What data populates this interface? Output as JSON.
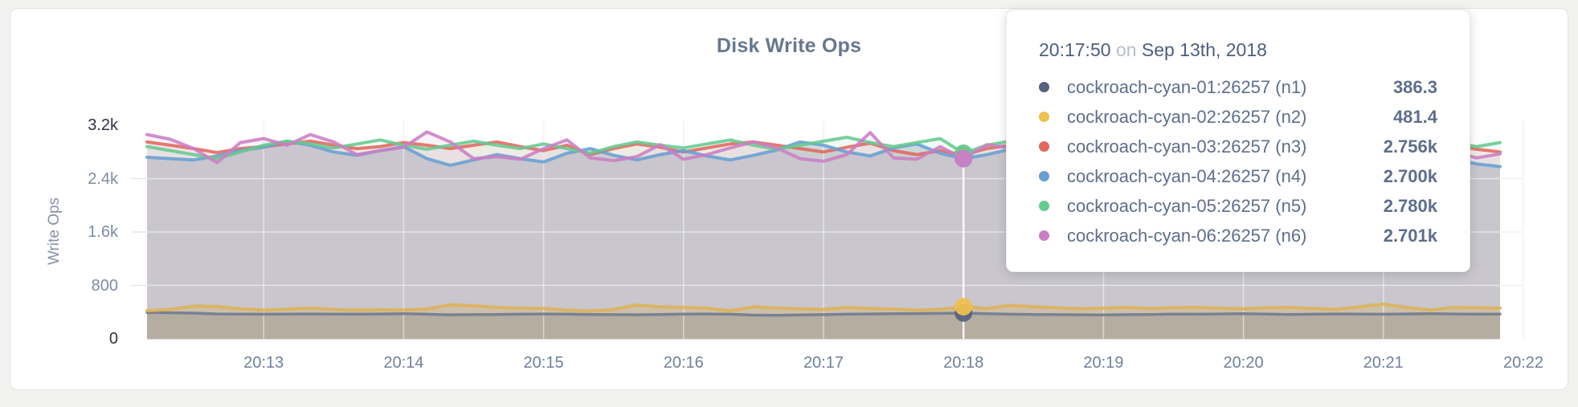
{
  "chart_data": {
    "type": "area",
    "title": "Disk Write Ops",
    "ylabel": "Write Ops",
    "ylim": [
      0,
      3200
    ],
    "grid": true,
    "y_ticks": [
      {
        "value": 0,
        "label": "0",
        "extreme": true
      },
      {
        "value": 800,
        "label": "800",
        "extreme": false
      },
      {
        "value": 1600,
        "label": "1.6k",
        "extreme": false
      },
      {
        "value": 2400,
        "label": "2.4k",
        "extreme": false
      },
      {
        "value": 3200,
        "label": "3.2k",
        "extreme": true
      }
    ],
    "x_tick_labels": [
      "20:13",
      "20:14",
      "20:15",
      "20:16",
      "20:17",
      "20:18",
      "20:19",
      "20:20",
      "20:21",
      "20:22"
    ],
    "x_start_time": "20:12:10",
    "x_step_seconds": 10,
    "series": [
      {
        "name": "cockroach-cyan-01:26257 (n1)",
        "color": "#6f7a8e",
        "dot_color": "#57637d",
        "width": 3.5,
        "values": [
          395,
          390,
          385,
          372,
          370,
          368,
          370,
          372,
          370,
          368,
          372,
          375,
          368,
          360,
          362,
          365,
          368,
          372,
          370,
          365,
          362,
          360,
          365,
          370,
          372,
          368,
          355,
          352,
          358,
          362,
          368,
          372,
          375,
          378,
          380,
          386.3,
          375,
          368,
          365,
          362,
          360,
          358,
          362,
          365,
          370,
          368,
          372,
          375,
          370,
          365,
          368,
          372,
          370,
          368,
          372,
          375,
          372,
          368,
          370
        ],
        "fill": "rgba(99,110,134,0.22)"
      },
      {
        "name": "cockroach-cyan-02:26257 (n2)",
        "color": "#ddb358",
        "dot_color": "#eec04f",
        "width": 4,
        "values": [
          420,
          440,
          490,
          485,
          450,
          430,
          445,
          460,
          440,
          430,
          435,
          430,
          445,
          510,
          495,
          470,
          460,
          455,
          430,
          415,
          440,
          505,
          480,
          470,
          460,
          420,
          480,
          460,
          450,
          440,
          470,
          455,
          445,
          430,
          440,
          481.4,
          455,
          500,
          480,
          465,
          450,
          460,
          470,
          455,
          465,
          470,
          460,
          450,
          465,
          470,
          455,
          440,
          480,
          520,
          470,
          430,
          470,
          465,
          460
        ],
        "fill": "rgba(220,177,86,0.30)"
      },
      {
        "name": "cockroach-cyan-03:26257 (n3)",
        "color": "#e0685e",
        "dot_color": "#e0685e",
        "width": 4,
        "values": [
          2950,
          2900,
          2850,
          2790,
          2850,
          2880,
          2920,
          2960,
          2900,
          2850,
          2880,
          2940,
          2900,
          2850,
          2900,
          2950,
          2880,
          2820,
          2900,
          2760,
          2850,
          2920,
          2870,
          2800,
          2860,
          2920,
          2950,
          2900,
          2850,
          2800,
          2870,
          2930,
          2820,
          2760,
          2820,
          2756,
          2850,
          2900,
          2870,
          2820,
          2880,
          2930,
          2860,
          2800,
          2850,
          2900,
          2840,
          2790,
          2860,
          2920,
          2870,
          2810,
          2880,
          2940,
          2760,
          2850,
          2900,
          2840,
          2800
        ],
        "fill": "rgba(224,104,94,0.10)"
      },
      {
        "name": "cockroach-cyan-04:26257 (n4)",
        "color": "#689fd3",
        "dot_color": "#689fd3",
        "width": 4,
        "values": [
          2720,
          2700,
          2680,
          2740,
          2820,
          2870,
          2960,
          2900,
          2800,
          2750,
          2820,
          2880,
          2700,
          2600,
          2680,
          2760,
          2700,
          2650,
          2780,
          2850,
          2750,
          2680,
          2760,
          2820,
          2740,
          2680,
          2750,
          2830,
          2950,
          2900,
          2800,
          2740,
          2860,
          2920,
          2780,
          2700,
          2760,
          2840,
          2760,
          2700,
          2780,
          2640,
          2600,
          2700,
          2780,
          2720,
          2660,
          2740,
          2820,
          2760,
          2700,
          2780,
          2850,
          2780,
          2700,
          2640,
          2700,
          2620,
          2580
        ],
        "fill": "rgba(104,159,211,0.10)",
        "base_fill": "#e1e1e4"
      },
      {
        "name": "cockroach-cyan-05:26257 (n5)",
        "color": "#67ca8f",
        "dot_color": "#67ca8f",
        "width": 4,
        "values": [
          2880,
          2820,
          2760,
          2700,
          2800,
          2900,
          2960,
          2920,
          2860,
          2920,
          2980,
          2900,
          2840,
          2900,
          2960,
          2900,
          2850,
          2920,
          2850,
          2780,
          2880,
          2950,
          2900,
          2860,
          2920,
          2980,
          2900,
          2840,
          2900,
          2960,
          3020,
          2940,
          2880,
          2940,
          3000,
          2780,
          2900,
          2960,
          2900,
          2840,
          2920,
          2980,
          2920,
          2860,
          2940,
          3000,
          2940,
          2880,
          2940,
          3010,
          2950,
          2890,
          2950,
          3010,
          2950,
          2880,
          2940,
          2880,
          2940
        ],
        "fill": "rgba(103,202,143,0.10)"
      },
      {
        "name": "cockroach-cyan-06:26257 (n6)",
        "color": "#cb7ec4",
        "dot_color": "#cb7ec4",
        "width": 4,
        "values": [
          3060,
          2990,
          2850,
          2640,
          2940,
          3000,
          2900,
          3060,
          2950,
          2760,
          2820,
          2870,
          3100,
          2950,
          2700,
          2730,
          2690,
          2850,
          2980,
          2710,
          2670,
          2730,
          2910,
          2690,
          2760,
          2860,
          2950,
          2860,
          2700,
          2660,
          2760,
          3090,
          2710,
          2690,
          2880,
          2701,
          2910,
          2860,
          2810,
          2960,
          2890,
          2710,
          2790,
          2870,
          2760,
          2710,
          2840,
          2910,
          2770,
          2820,
          2750,
          2700,
          2830,
          3070,
          2710,
          2860,
          2800,
          2710,
          2770
        ],
        "fill": "rgba(203,126,196,0.10)"
      }
    ],
    "hover": {
      "index": 35,
      "time": "20:17:50",
      "date": "Sep 13th, 2018"
    }
  },
  "tooltip": {
    "time": "20:17:50",
    "on_word": "on",
    "date": "Sep 13th, 2018",
    "rows": [
      {
        "name": "cockroach-cyan-01:26257 (n1)",
        "value": "386.3"
      },
      {
        "name": "cockroach-cyan-02:26257 (n2)",
        "value": "481.4"
      },
      {
        "name": "cockroach-cyan-03:26257 (n3)",
        "value": "2.756k"
      },
      {
        "name": "cockroach-cyan-04:26257 (n4)",
        "value": "2.700k"
      },
      {
        "name": "cockroach-cyan-05:26257 (n5)",
        "value": "2.780k"
      },
      {
        "name": "cockroach-cyan-06:26257 (n6)",
        "value": "2.701k"
      }
    ]
  }
}
